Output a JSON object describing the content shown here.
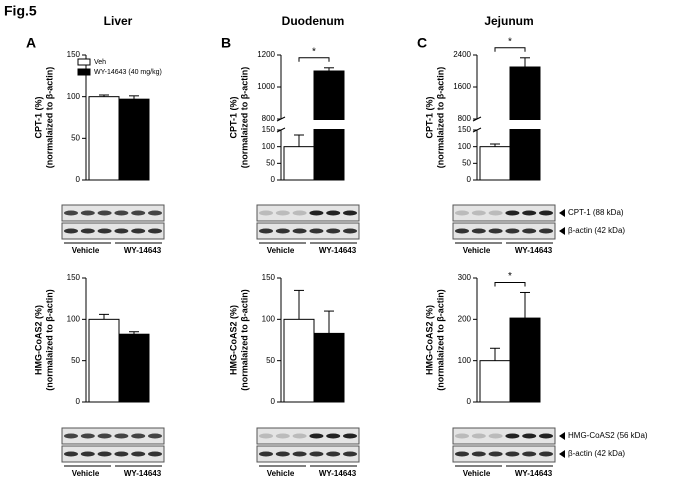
{
  "title": "Fig.5",
  "chart_data": [
    {
      "type": "bar",
      "panel": "A",
      "tissue": "Liver",
      "ylabel": [
        "CPT-1 (%)",
        "(normalaized to β-actin)"
      ],
      "ylim": [
        0,
        150
      ],
      "yticks": [
        0,
        50,
        100,
        150
      ],
      "values": [
        100,
        97
      ],
      "errors": [
        2,
        4
      ],
      "colors": [
        "#ffffff",
        "#000000"
      ],
      "legend": [
        "Veh",
        "WY-14643 (40 mg/kg)"
      ],
      "groups": [
        "Vehicle",
        "WY-14643"
      ]
    },
    {
      "type": "bar",
      "ylabel": [
        "HMG-CoAS2 (%)",
        "(normalaized to β-actin)"
      ],
      "ylim": [
        0,
        150
      ],
      "yticks": [
        0,
        50,
        100,
        150
      ],
      "values": [
        100,
        82
      ],
      "errors": [
        6,
        3
      ],
      "colors": [
        "#ffffff",
        "#000000"
      ],
      "groups": [
        "Vehicle",
        "WY-14643"
      ]
    },
    {
      "type": "bar",
      "panel": "B",
      "tissue": "Duodenum",
      "ylabel": [
        "CPT-1 (%)",
        "(normalaized to β-actin)"
      ],
      "ylim": [
        0,
        1200
      ],
      "axis_break": [
        150,
        800
      ],
      "yticks": [
        0,
        50,
        100,
        150,
        800,
        1000,
        1200
      ],
      "values": [
        100,
        1100
      ],
      "errors": [
        35,
        20
      ],
      "colors": [
        "#ffffff",
        "#000000"
      ],
      "annotation": "*",
      "groups": [
        "Vehicle",
        "WY-14643"
      ]
    },
    {
      "type": "bar",
      "ylabel": [
        "HMG-CoAS2 (%)",
        "(normalaized to β-actin)"
      ],
      "ylim": [
        0,
        150
      ],
      "yticks": [
        0,
        50,
        100,
        150
      ],
      "values": [
        100,
        83
      ],
      "errors": [
        35,
        27
      ],
      "colors": [
        "#ffffff",
        "#000000"
      ],
      "groups": [
        "Vehicle",
        "WY-14643"
      ]
    },
    {
      "type": "bar",
      "panel": "C",
      "tissue": "Jejunum",
      "ylabel": [
        "CPT-1 (%)",
        "(normalaized to β-actin)"
      ],
      "ylim": [
        0,
        2400
      ],
      "axis_break": [
        150,
        800
      ],
      "yticks": [
        0,
        50,
        100,
        150,
        800,
        1600,
        2400
      ],
      "values": [
        100,
        2100
      ],
      "errors": [
        8,
        230
      ],
      "colors": [
        "#ffffff",
        "#000000"
      ],
      "annotation": "*",
      "groups": [
        "Vehicle",
        "WY-14643"
      ],
      "blot_labels": [
        "CPT-1 (88 kDa)",
        "β-actin (42 kDa)"
      ]
    },
    {
      "type": "bar",
      "ylabel": [
        "HMG-CoAS2 (%)",
        "(normalaized to β-actin)"
      ],
      "ylim": [
        0,
        300
      ],
      "yticks": [
        0,
        100,
        200,
        300
      ],
      "values": [
        100,
        203
      ],
      "errors": [
        30,
        62
      ],
      "colors": [
        "#ffffff",
        "#000000"
      ],
      "annotation": "*",
      "groups": [
        "Vehicle",
        "WY-14643"
      ],
      "blot_labels": [
        "HMG-CoAS2 (56 kDa)",
        "β-actin (42 kDa)"
      ]
    }
  ]
}
